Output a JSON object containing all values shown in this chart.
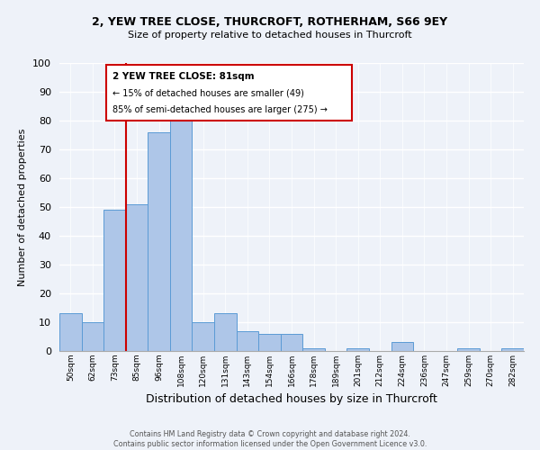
{
  "title1": "2, YEW TREE CLOSE, THURCROFT, ROTHERHAM, S66 9EY",
  "title2": "Size of property relative to detached houses in Thurcroft",
  "xlabel": "Distribution of detached houses by size in Thurcroft",
  "ylabel": "Number of detached properties",
  "bin_labels": [
    "50sqm",
    "62sqm",
    "73sqm",
    "85sqm",
    "96sqm",
    "108sqm",
    "120sqm",
    "131sqm",
    "143sqm",
    "154sqm",
    "166sqm",
    "178sqm",
    "189sqm",
    "201sqm",
    "212sqm",
    "224sqm",
    "236sqm",
    "247sqm",
    "259sqm",
    "270sqm",
    "282sqm"
  ],
  "bin_values": [
    13,
    10,
    49,
    51,
    76,
    81,
    10,
    13,
    7,
    6,
    6,
    1,
    0,
    1,
    0,
    3,
    0,
    0,
    1,
    0,
    1
  ],
  "bar_color": "#aec6e8",
  "bar_edge_color": "#5b9bd5",
  "vline_color": "#cc0000",
  "vline_pos": 2.5,
  "ylim": [
    0,
    100
  ],
  "yticks": [
    0,
    10,
    20,
    30,
    40,
    50,
    60,
    70,
    80,
    90,
    100
  ],
  "annotation_title": "2 YEW TREE CLOSE: 81sqm",
  "annotation_line1": "← 15% of detached houses are smaller (49)",
  "annotation_line2": "85% of semi-detached houses are larger (275) →",
  "annotation_box_color": "#cc0000",
  "footer_line1": "Contains HM Land Registry data © Crown copyright and database right 2024.",
  "footer_line2": "Contains public sector information licensed under the Open Government Licence v3.0.",
  "bg_color": "#eef2f9"
}
